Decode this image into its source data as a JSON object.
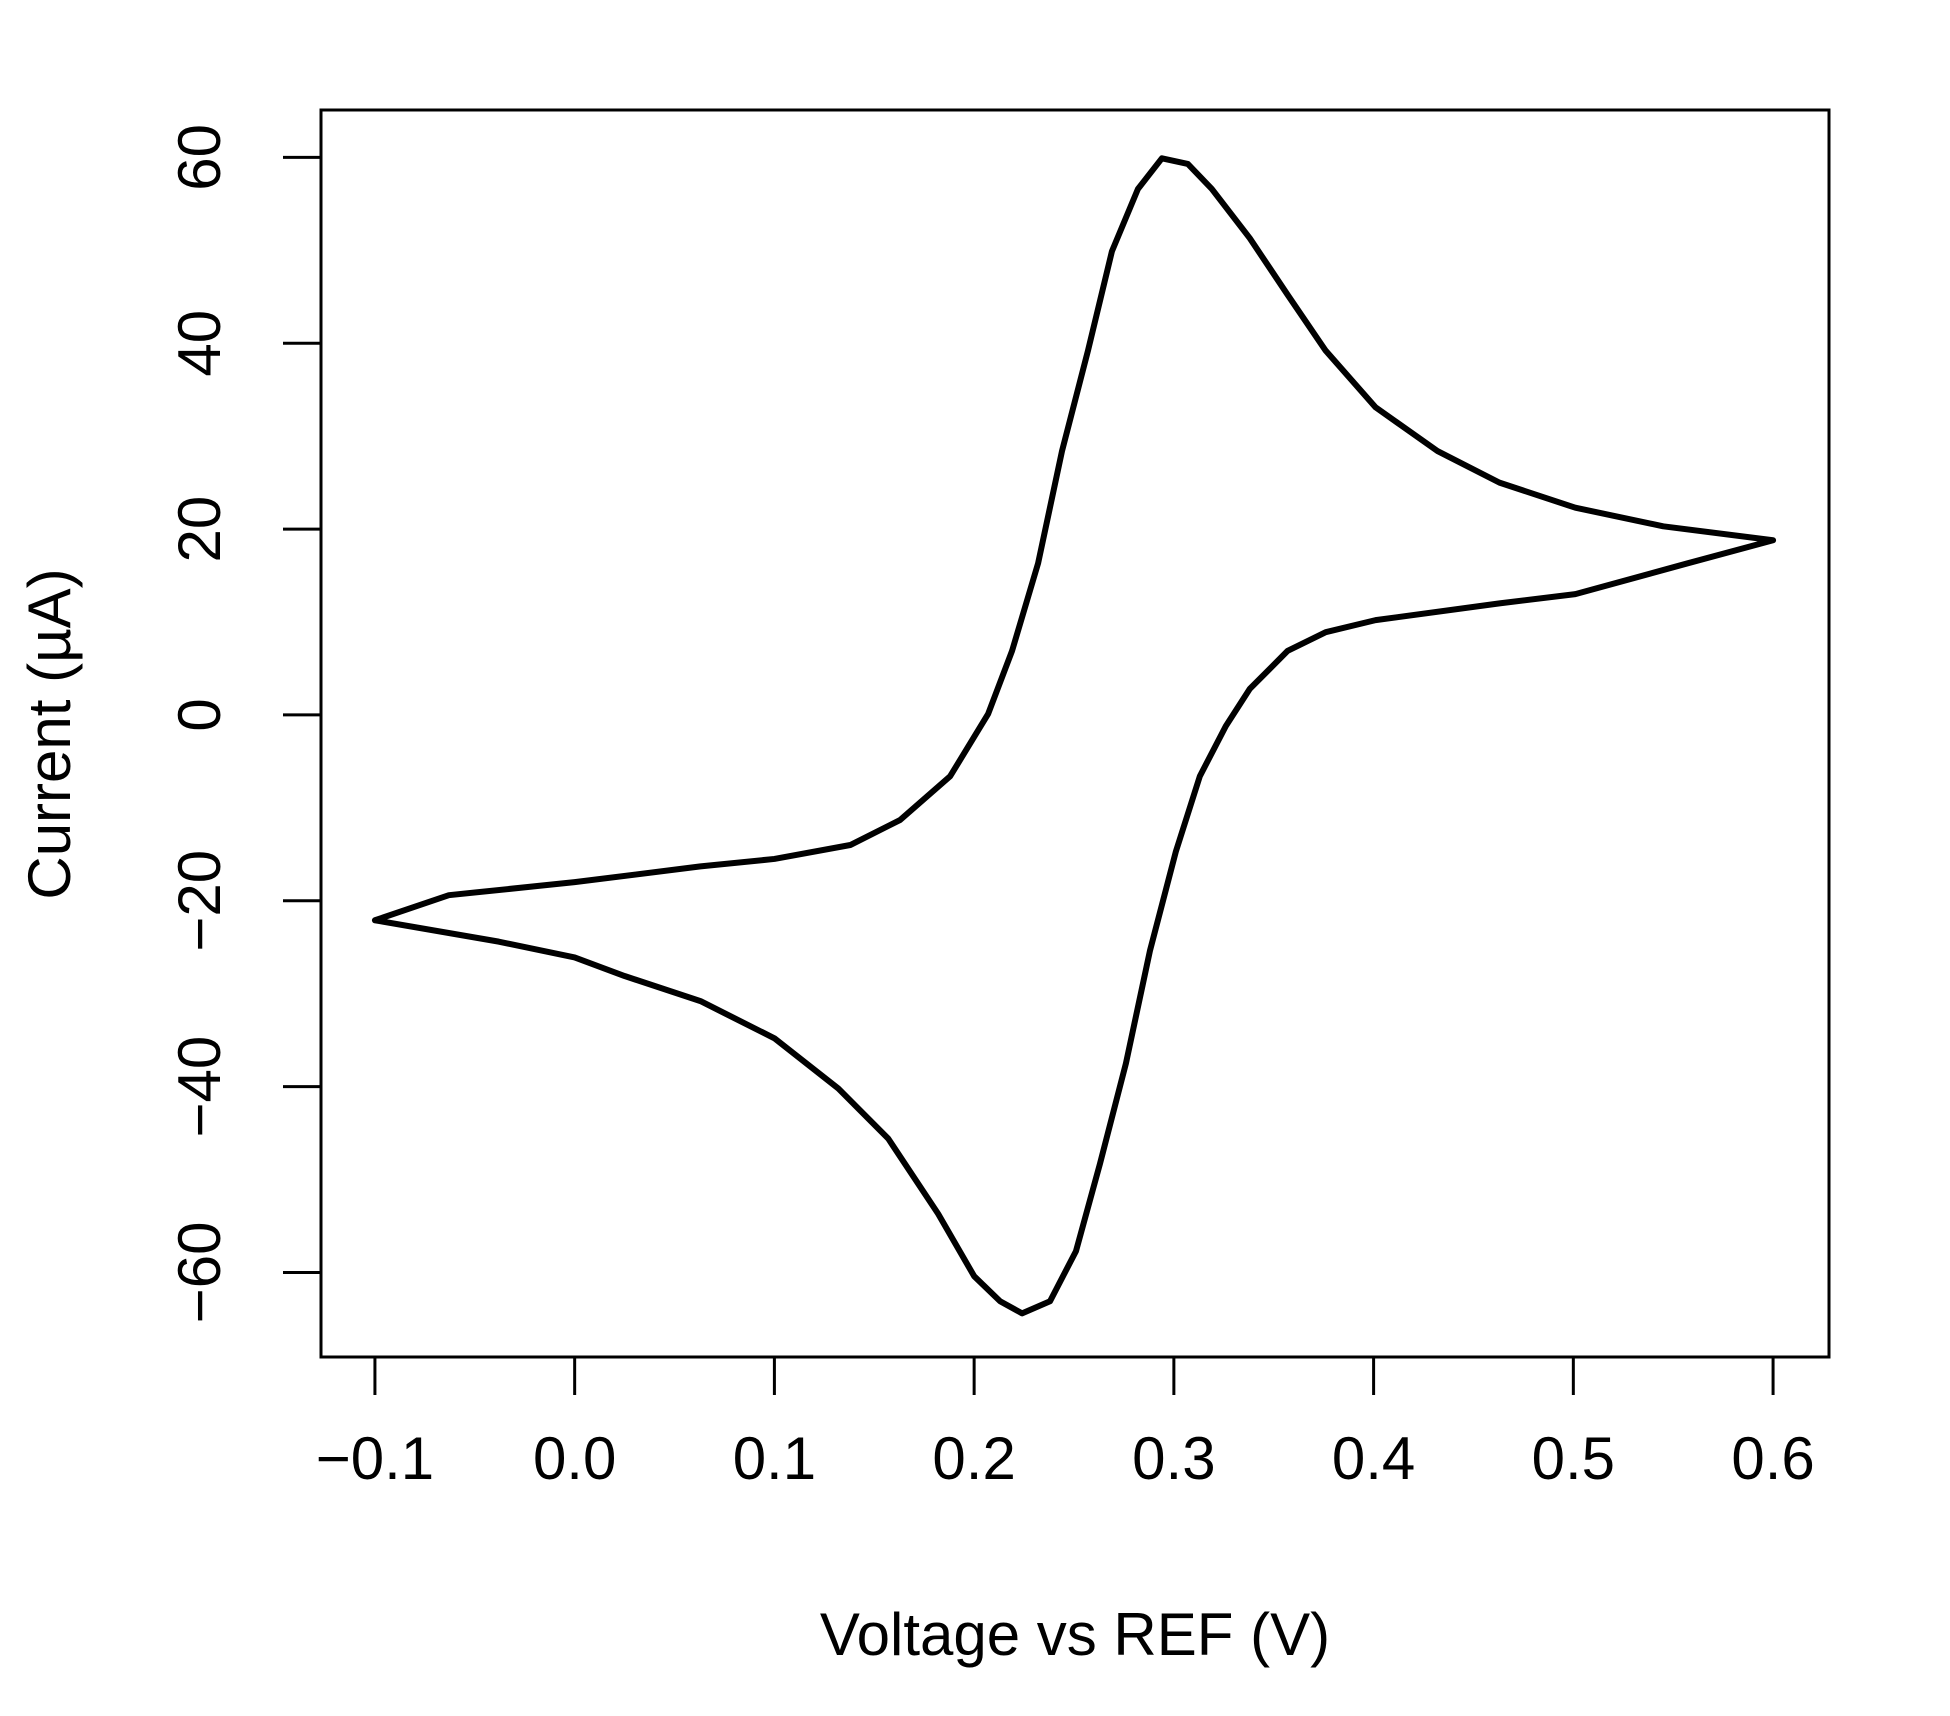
{
  "chart_data": {
    "type": "line",
    "x_label": "Voltage vs REF (V)",
    "y_label": "Current (µA)",
    "x": [
      -0.1,
      -0.063,
      0.0,
      0.063,
      0.1,
      0.138,
      0.163,
      0.188,
      0.207,
      0.219,
      0.232,
      0.244,
      0.257,
      0.269,
      0.282,
      0.294,
      0.307,
      0.319,
      0.338,
      0.357,
      0.376,
      0.401,
      0.432,
      0.463,
      0.501,
      0.545,
      0.6,
      0.557,
      0.501,
      0.463,
      0.401,
      0.376,
      0.357,
      0.338,
      0.326,
      0.313,
      0.301,
      0.288,
      0.276,
      0.263,
      0.251,
      0.238,
      0.224,
      0.213,
      0.2,
      0.182,
      0.157,
      0.132,
      0.1,
      0.063,
      0.025,
      0.0,
      -0.038,
      -0.1
    ],
    "values": [
      -22.1,
      -19.4,
      -18.0,
      -16.3,
      -15.5,
      -14.0,
      -11.3,
      -6.6,
      0.1,
      6.9,
      16.3,
      28.4,
      39.2,
      49.9,
      56.6,
      59.9,
      59.3,
      56.6,
      51.3,
      45.2,
      39.2,
      33.1,
      28.4,
      25.0,
      22.3,
      20.3,
      18.8,
      16.3,
      13.0,
      12.0,
      10.2,
      8.9,
      6.9,
      2.8,
      -1.2,
      -6.6,
      -14.7,
      -25.4,
      -37.5,
      -48.3,
      -57.7,
      -63.1,
      -64.4,
      -63.1,
      -60.4,
      -53.7,
      -45.6,
      -40.2,
      -34.8,
      -30.8,
      -28.1,
      -26.1,
      -24.4,
      -22.1
    ],
    "color": "#000000",
    "xlim": [
      -0.127,
      0.628
    ],
    "ylim": [
      -69.1,
      65.1
    ],
    "xticks": [
      {
        "value": -0.1,
        "label": "−0.1"
      },
      {
        "value": 0,
        "label": "0.0"
      },
      0.1,
      0.2,
      0.3,
      0.4,
      0.5,
      0.6
    ],
    "yticks": [
      {
        "value": -60,
        "label": "−60"
      },
      {
        "value": -40,
        "label": "−40"
      },
      {
        "value": -20,
        "label": "−20"
      },
      0,
      20,
      40,
      60
    ],
    "grid": false
  }
}
